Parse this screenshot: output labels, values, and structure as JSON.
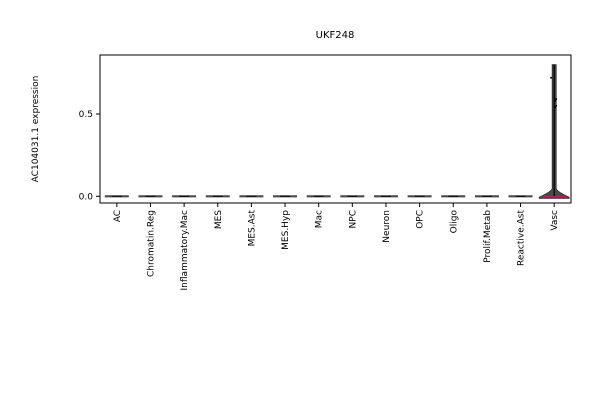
{
  "chart_data": {
    "type": "violin",
    "title": "UKF248",
    "xlabel": "",
    "ylabel": "AC104031.1 expression",
    "ylim": [
      -0.05,
      0.85
    ],
    "yticks": [
      0.0,
      0.5
    ],
    "ytick_labels": [
      "0.0",
      "0.5"
    ],
    "categories": [
      "AC",
      "Chromatin.Reg",
      "Inflammatory.Mac",
      "MES",
      "MES.Ast",
      "MES.Hyp",
      "Mac",
      "NPC",
      "Neuron",
      "OPC",
      "Oligo",
      "Prolif.Metab",
      "Reactive.Ast",
      "Vasc"
    ],
    "values": [
      0,
      0,
      0,
      0,
      0,
      0,
      0,
      0,
      0,
      0,
      0,
      0,
      0,
      0.8
    ],
    "median": [
      0,
      0,
      0,
      0,
      0,
      0,
      0,
      0,
      0,
      0,
      0,
      0,
      0,
      0
    ],
    "outliers": {
      "Vasc": [
        0.72,
        0.59,
        0.58,
        0.55,
        0.54
      ]
    },
    "colors": {
      "violin": "#4a4a4a",
      "median": "#c2185b",
      "box": "#000000"
    }
  }
}
